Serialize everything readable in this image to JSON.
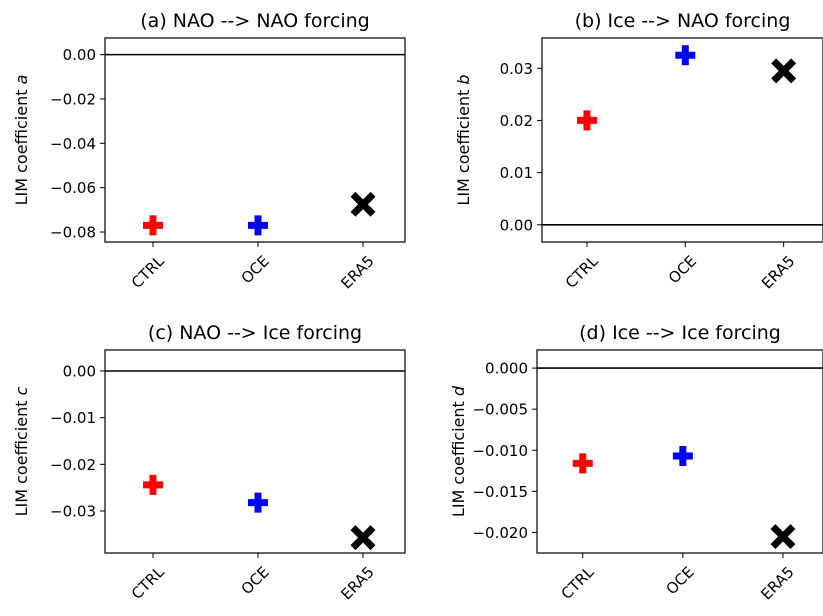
{
  "chart_data": [
    {
      "type": "scatter",
      "title": "(a) NAO --> NAO forcing",
      "ylabel_prefix": "LIM coefficient ",
      "ylabel_var": "a",
      "categories": [
        "CTRL",
        "OCE",
        "ERA5"
      ],
      "values": [
        -0.077,
        -0.077,
        -0.0675
      ],
      "markers": [
        "plus",
        "plus",
        "x"
      ],
      "colors": [
        "#ff0000",
        "#0000ff",
        "#000000"
      ],
      "yticks": [
        "0.00",
        "−0.02",
        "−0.04",
        "−0.06",
        "−0.08"
      ],
      "ytick_values": [
        0.0,
        -0.02,
        -0.04,
        -0.06,
        -0.08
      ],
      "ylim": [
        -0.0845,
        0.0075
      ],
      "zero_line": true
    },
    {
      "type": "scatter",
      "title": "(b) Ice --> NAO forcing",
      "ylabel_prefix": "LIM coefficient ",
      "ylabel_var": "b",
      "categories": [
        "CTRL",
        "OCE",
        "ERA5"
      ],
      "values": [
        0.02,
        0.0325,
        0.0295
      ],
      "markers": [
        "plus",
        "plus",
        "x"
      ],
      "colors": [
        "#ff0000",
        "#0000ff",
        "#000000"
      ],
      "yticks": [
        "0.03",
        "0.02",
        "0.01",
        "0.00"
      ],
      "ytick_values": [
        0.03,
        0.02,
        0.01,
        0.0
      ],
      "ylim": [
        -0.0033,
        0.0358
      ],
      "zero_line": true
    },
    {
      "type": "scatter",
      "title": "(c) NAO --> Ice forcing",
      "ylabel_prefix": "LIM coefficient ",
      "ylabel_var": "c",
      "categories": [
        "CTRL",
        "OCE",
        "ERA5"
      ],
      "values": [
        -0.0244,
        -0.0282,
        -0.0357
      ],
      "markers": [
        "plus",
        "plus",
        "x"
      ],
      "colors": [
        "#ff0000",
        "#0000ff",
        "#000000"
      ],
      "yticks": [
        "0.00",
        "−0.01",
        "−0.02",
        "−0.03"
      ],
      "ytick_values": [
        0.0,
        -0.01,
        -0.02,
        -0.03
      ],
      "ylim": [
        -0.039,
        0.0045
      ],
      "zero_line": true
    },
    {
      "type": "scatter",
      "title": "(d) Ice --> Ice forcing",
      "ylabel_prefix": "LIM coefficient ",
      "ylabel_var": "d",
      "categories": [
        "CTRL",
        "OCE",
        "ERA5"
      ],
      "values": [
        -0.0116,
        -0.0107,
        -0.0205
      ],
      "markers": [
        "plus",
        "plus",
        "x"
      ],
      "colors": [
        "#ff0000",
        "#0000ff",
        "#000000"
      ],
      "yticks": [
        "0.000",
        "−0.005",
        "−0.010",
        "−0.015",
        "−0.020"
      ],
      "ytick_values": [
        0.0,
        -0.005,
        -0.01,
        -0.015,
        -0.02
      ],
      "ylim": [
        -0.0225,
        0.0022
      ],
      "zero_line": true
    }
  ]
}
